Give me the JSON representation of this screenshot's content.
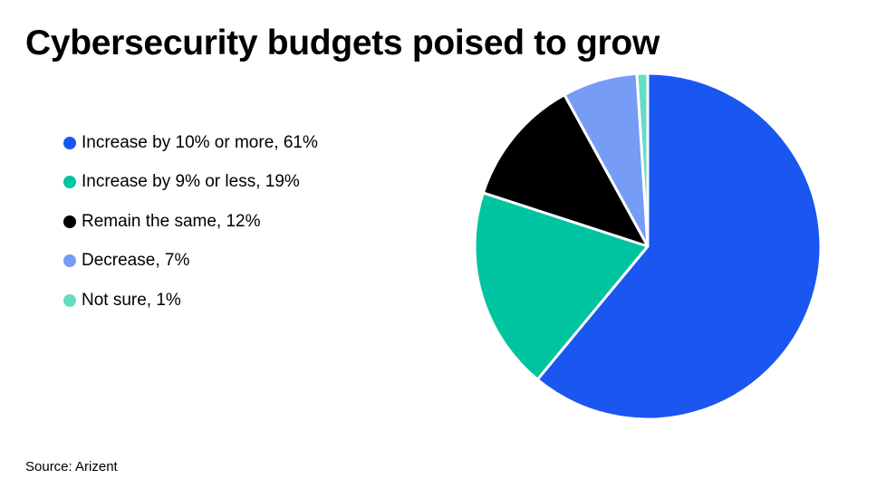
{
  "title": "Cybersecurity budgets poised to grow",
  "source": "Source: Arizent",
  "chart_data": {
    "type": "pie",
    "title": "Cybersecurity budgets poised to grow",
    "legend_position": "left",
    "slices": [
      {
        "label": "Increase by 10% or more, 61%",
        "name": "Increase by 10% or more",
        "value": 61,
        "color": "#1a56f0"
      },
      {
        "label": "Increase by 9% or less, 19%",
        "name": "Increase by 9% or less",
        "value": 19,
        "color": "#00c49f"
      },
      {
        "label": "Remain the same, 12%",
        "name": "Remain the same",
        "value": 12,
        "color": "#000000"
      },
      {
        "label": "Decrease, 7%",
        "name": "Decrease",
        "value": 7,
        "color": "#779cf5"
      },
      {
        "label": "Not sure, 1%",
        "name": "Not sure",
        "value": 1,
        "color": "#66dcc4"
      }
    ]
  }
}
